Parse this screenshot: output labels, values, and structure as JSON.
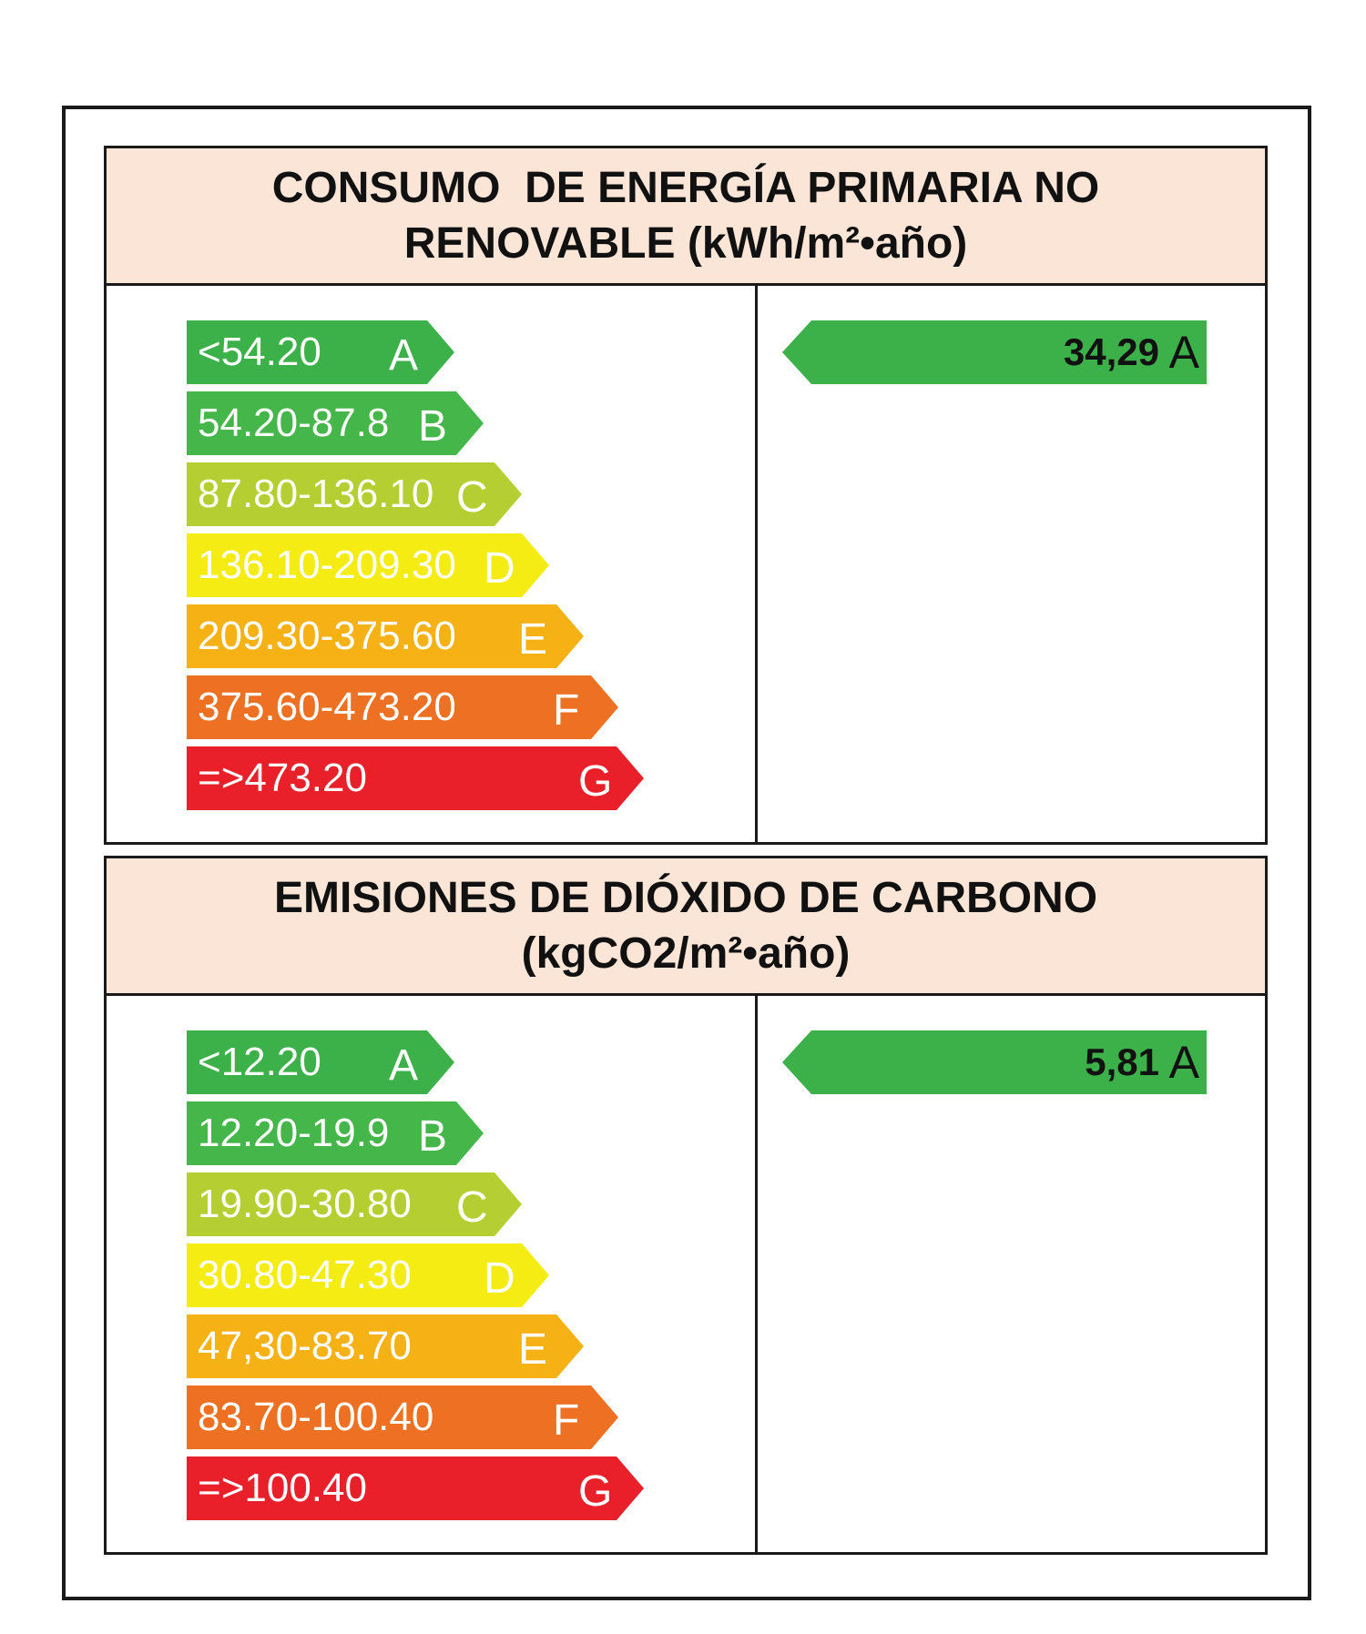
{
  "energy": {
    "header_line1": "CONSUMO  DE ENERGÍA PRIMARIA NO",
    "header_line2": "RENOVABLE (kWh/m²•año)",
    "rating_value": "34,29",
    "rating_class": "A",
    "rating_color": "#3cb049",
    "classes": [
      {
        "range": "<54.20",
        "letter": "A",
        "color": "#3cb049"
      },
      {
        "range": "54.20-87.8",
        "letter": "B",
        "color": "#45b649"
      },
      {
        "range": "87.80-136.10",
        "letter": "C",
        "color": "#b5cf33"
      },
      {
        "range": "136.10-209.30",
        "letter": "D",
        "color": "#f5ec13"
      },
      {
        "range": "209.30-375.60",
        "letter": "E",
        "color": "#f6b215"
      },
      {
        "range": "375.60-473.20",
        "letter": "F",
        "color": "#ee7022"
      },
      {
        "range": "=>473.20",
        "letter": "G",
        "color": "#e9202a"
      }
    ]
  },
  "emissions": {
    "header_line1": "EMISIONES DE DIÓXIDO DE CARBONO",
    "header_line2": "(kgCO2/m²•año)",
    "rating_value": "5,81",
    "rating_class": "A",
    "rating_color": "#3cb049",
    "classes": [
      {
        "range": "<12.20",
        "letter": "A",
        "color": "#3cb049"
      },
      {
        "range": "12.20-19.9",
        "letter": "B",
        "color": "#45b649"
      },
      {
        "range": "19.90-30.80",
        "letter": "C",
        "color": "#b5cf33"
      },
      {
        "range": "30.80-47.30",
        "letter": "D",
        "color": "#f5ec13"
      },
      {
        "range": "47,30-83.70",
        "letter": "E",
        "color": "#f6b215"
      },
      {
        "range": "83.70-100.40",
        "letter": "F",
        "color": "#ee7022"
      },
      {
        "range": "=>100.40",
        "letter": "G",
        "color": "#e9202a"
      }
    ]
  }
}
